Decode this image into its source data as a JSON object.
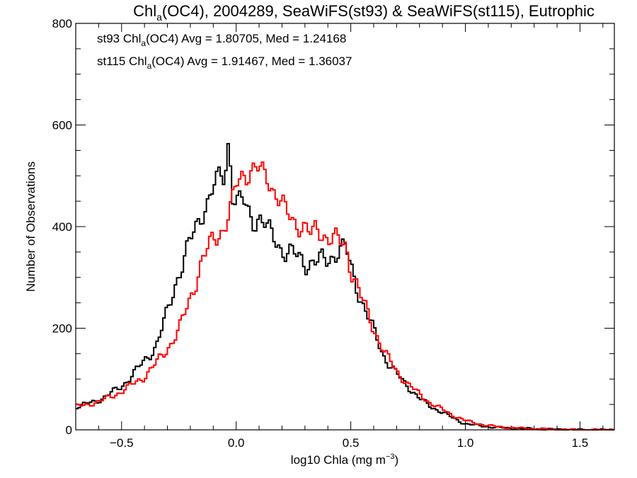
{
  "chart_data": {
    "type": "line",
    "title": {
      "pre": "Chl",
      "sub": "a",
      "post": "(OC4), 2004289, SeaWiFS(st93) & SeaWiFS(st115), Eutrophic"
    },
    "xlabel": {
      "pre": "log10 Chla (mg m",
      "sup": "−3",
      "post": ")"
    },
    "ylabel": "Number of Observations",
    "xlim": [
      -0.7,
      1.65
    ],
    "ylim": [
      0,
      800
    ],
    "xticks": [
      {
        "value": -0.5,
        "label": "−0.5"
      },
      {
        "value": 0.0,
        "label": "0.0"
      },
      {
        "value": 0.5,
        "label": "0.5"
      },
      {
        "value": 1.0,
        "label": "1.0"
      },
      {
        "value": 1.5,
        "label": "1.5"
      }
    ],
    "yticks": [
      {
        "value": 0,
        "label": "0"
      },
      {
        "value": 200,
        "label": "200"
      },
      {
        "value": 400,
        "label": "400"
      },
      {
        "value": 600,
        "label": "600"
      },
      {
        "value": 800,
        "label": "800"
      }
    ],
    "grid": false,
    "bin_width": 0.01,
    "annotations": [
      {
        "pre": "st93 Chl",
        "sub": "a",
        "post": "(OC4) Avg = 1.80705, Med = 1.24168",
        "color": "#000000"
      },
      {
        "pre": "st115 Chl",
        "sub": "a",
        "post": "(OC4) Avg = 1.91467, Med = 1.36037",
        "color": "#ff0000"
      }
    ],
    "series": [
      {
        "color": "#000000",
        "values": [
          [
            -0.7,
            45
          ],
          [
            -0.6,
            58
          ],
          [
            -0.5,
            85
          ],
          [
            -0.45,
            110
          ],
          [
            -0.4,
            135
          ],
          [
            -0.35,
            165
          ],
          [
            -0.3,
            230
          ],
          [
            -0.25,
            310
          ],
          [
            -0.2,
            370
          ],
          [
            -0.15,
            425
          ],
          [
            -0.1,
            475
          ],
          [
            -0.07,
            500
          ],
          [
            -0.05,
            495
          ],
          [
            -0.03,
            585
          ],
          [
            -0.02,
            470
          ],
          [
            0.0,
            450
          ],
          [
            0.03,
            450
          ],
          [
            0.05,
            430
          ],
          [
            0.08,
            410
          ],
          [
            0.1,
            420
          ],
          [
            0.13,
            400
          ],
          [
            0.15,
            385
          ],
          [
            0.18,
            370
          ],
          [
            0.2,
            355
          ],
          [
            0.22,
            350
          ],
          [
            0.25,
            345
          ],
          [
            0.3,
            330
          ],
          [
            0.35,
            330
          ],
          [
            0.4,
            335
          ],
          [
            0.45,
            355
          ],
          [
            0.48,
            355
          ],
          [
            0.5,
            320
          ],
          [
            0.55,
            250
          ],
          [
            0.6,
            195
          ],
          [
            0.65,
            140
          ],
          [
            0.7,
            110
          ],
          [
            0.75,
            85
          ],
          [
            0.8,
            62
          ],
          [
            0.85,
            45
          ],
          [
            0.9,
            35
          ],
          [
            0.95,
            22
          ],
          [
            1.0,
            12
          ],
          [
            1.1,
            6
          ],
          [
            1.2,
            3
          ],
          [
            1.3,
            2
          ],
          [
            1.4,
            1
          ],
          [
            1.5,
            0
          ],
          [
            1.65,
            0
          ]
        ]
      },
      {
        "color": "#ff0000",
        "values": [
          [
            -0.7,
            45
          ],
          [
            -0.6,
            55
          ],
          [
            -0.5,
            75
          ],
          [
            -0.45,
            90
          ],
          [
            -0.4,
            105
          ],
          [
            -0.35,
            130
          ],
          [
            -0.3,
            160
          ],
          [
            -0.25,
            195
          ],
          [
            -0.2,
            260
          ],
          [
            -0.15,
            330
          ],
          [
            -0.1,
            375
          ],
          [
            -0.05,
            400
          ],
          [
            -0.02,
            440
          ],
          [
            0.0,
            480
          ],
          [
            0.03,
            505
          ],
          [
            0.05,
            505
          ],
          [
            0.08,
            515
          ],
          [
            0.1,
            510
          ],
          [
            0.13,
            500
          ],
          [
            0.15,
            485
          ],
          [
            0.18,
            460
          ],
          [
            0.2,
            445
          ],
          [
            0.22,
            425
          ],
          [
            0.25,
            410
          ],
          [
            0.3,
            400
          ],
          [
            0.33,
            380
          ],
          [
            0.35,
            395
          ],
          [
            0.4,
            380
          ],
          [
            0.45,
            370
          ],
          [
            0.48,
            360
          ],
          [
            0.5,
            320
          ],
          [
            0.55,
            255
          ],
          [
            0.6,
            200
          ],
          [
            0.65,
            150
          ],
          [
            0.7,
            115
          ],
          [
            0.75,
            90
          ],
          [
            0.8,
            70
          ],
          [
            0.85,
            52
          ],
          [
            0.9,
            40
          ],
          [
            0.95,
            28
          ],
          [
            1.0,
            18
          ],
          [
            1.1,
            8
          ],
          [
            1.2,
            4
          ],
          [
            1.3,
            2
          ],
          [
            1.4,
            1
          ],
          [
            1.5,
            0
          ],
          [
            1.65,
            0
          ]
        ]
      }
    ]
  }
}
